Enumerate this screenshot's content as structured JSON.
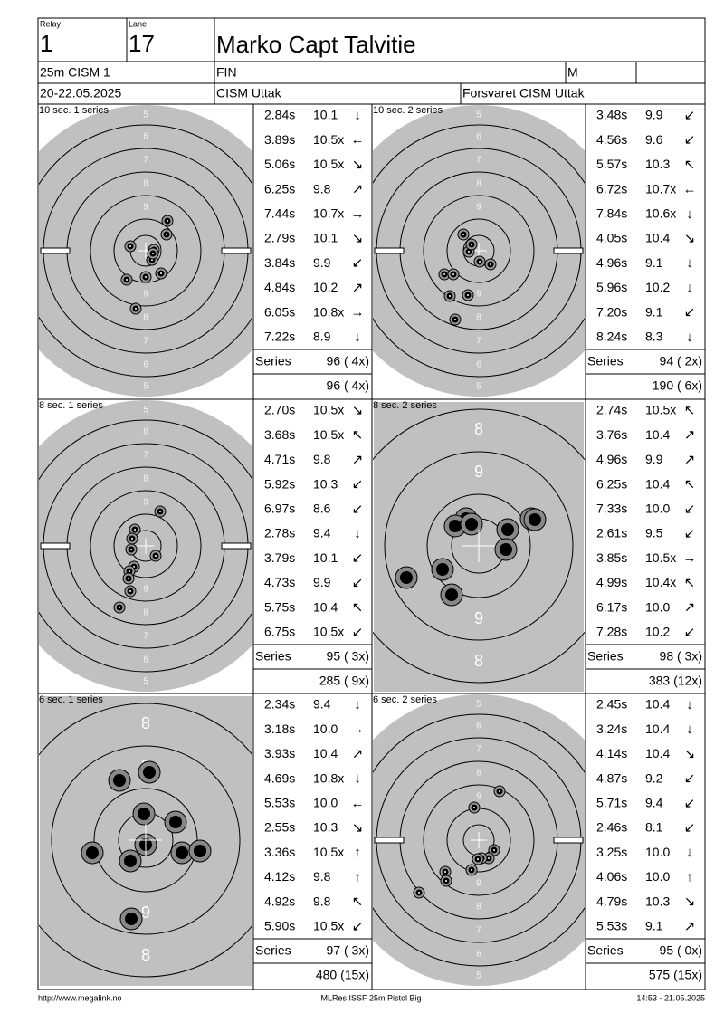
{
  "header": {
    "relay_label": "Relay",
    "relay": "1",
    "lane_label": "Lane",
    "lane": "17",
    "name": "Marko Capt Talvitie",
    "event": "25m CISM 1",
    "nation": "FIN",
    "gender": "M",
    "date": "20-22.05.2025",
    "competition": "CISM Uttak",
    "organizer": "Forsvaret CISM Uttak"
  },
  "panels": [
    {
      "title": "10 sec. 1 series",
      "zoom": false,
      "rings": [
        "5",
        "6",
        "7",
        "8",
        "9"
      ],
      "shots": [
        [
          "2.84s",
          "10.1",
          "↓"
        ],
        [
          "3.89s",
          "10.5x",
          "←"
        ],
        [
          "5.06s",
          "10.5x",
          "↘"
        ],
        [
          "6.25s",
          "9.8",
          "↗"
        ],
        [
          "7.44s",
          "10.7x",
          "→"
        ],
        [
          "2.79s",
          "10.1",
          "↘"
        ],
        [
          "3.84s",
          "9.9",
          "↙"
        ],
        [
          "4.84s",
          "10.2",
          "↗"
        ],
        [
          "6.05s",
          "10.8x",
          "→"
        ],
        [
          "7.22s",
          "8.9",
          "↓"
        ]
      ],
      "series_label": "Series",
      "series_total": "96 ( 4x)",
      "running_total": "96 ( 4x)"
    },
    {
      "title": "10 sec. 2 series",
      "zoom": false,
      "rings": [
        "5",
        "6",
        "7",
        "8",
        "9"
      ],
      "shots": [
        [
          "3.48s",
          "9.9",
          "↙"
        ],
        [
          "4.56s",
          "9.6",
          "↙"
        ],
        [
          "5.57s",
          "10.3",
          "↖"
        ],
        [
          "6.72s",
          "10.7x",
          "←"
        ],
        [
          "7.84s",
          "10.6x",
          "↓"
        ],
        [
          "4.05s",
          "10.4",
          "↘"
        ],
        [
          "4.96s",
          "9.1",
          "↓"
        ],
        [
          "5.96s",
          "10.2",
          "↓"
        ],
        [
          "7.20s",
          "9.1",
          "↙"
        ],
        [
          "8.24s",
          "8.3",
          "↓"
        ]
      ],
      "series_label": "Series",
      "series_total": "94 ( 2x)",
      "running_total": "190 ( 6x)"
    },
    {
      "title": "8 sec. 1 series",
      "zoom": false,
      "rings": [
        "5",
        "6",
        "7",
        "8",
        "9"
      ],
      "shots": [
        [
          "2.70s",
          "10.5x",
          "↘"
        ],
        [
          "3.68s",
          "10.5x",
          "↖"
        ],
        [
          "4.71s",
          "9.8",
          "↗"
        ],
        [
          "5.92s",
          "10.3",
          "↙"
        ],
        [
          "6.97s",
          "8.6",
          "↙"
        ],
        [
          "2.78s",
          "9.4",
          "↓"
        ],
        [
          "3.79s",
          "10.1",
          "↙"
        ],
        [
          "4.73s",
          "9.9",
          "↙"
        ],
        [
          "5.75s",
          "10.4",
          "↖"
        ],
        [
          "6.75s",
          "10.5x",
          "↙"
        ]
      ],
      "series_label": "Series",
      "series_total": "95 ( 3x)",
      "running_total": "285 ( 9x)"
    },
    {
      "title": "8 sec. 2 series",
      "zoom": true,
      "rings": [
        "8",
        "9"
      ],
      "shots": [
        [
          "2.74s",
          "10.5x",
          "↖"
        ],
        [
          "3.76s",
          "10.4",
          "↗"
        ],
        [
          "4.96s",
          "9.9",
          "↗"
        ],
        [
          "6.25s",
          "10.4",
          "↖"
        ],
        [
          "7.33s",
          "10.0",
          "↙"
        ],
        [
          "2.61s",
          "9.5",
          "↙"
        ],
        [
          "3.85s",
          "10.5x",
          "→"
        ],
        [
          "4.99s",
          "10.4x",
          "↖"
        ],
        [
          "6.17s",
          "10.0",
          "↗"
        ],
        [
          "7.28s",
          "10.2",
          "↙"
        ]
      ],
      "series_label": "Series",
      "series_total": "98 ( 3x)",
      "running_total": "383 (12x)"
    },
    {
      "title": "6 sec. 1 series",
      "zoom": true,
      "rings": [
        "8",
        "9"
      ],
      "shots": [
        [
          "2.34s",
          "9.4",
          "↓"
        ],
        [
          "3.18s",
          "10.0",
          "→"
        ],
        [
          "3.93s",
          "10.4",
          "↗"
        ],
        [
          "4.69s",
          "10.8x",
          "↓"
        ],
        [
          "5.53s",
          "10.0",
          "←"
        ],
        [
          "2.55s",
          "10.3",
          "↘"
        ],
        [
          "3.36s",
          "10.5x",
          "↑"
        ],
        [
          "4.12s",
          "9.8",
          "↑"
        ],
        [
          "4.92s",
          "9.8",
          "↖"
        ],
        [
          "5.90s",
          "10.5x",
          "↙"
        ]
      ],
      "series_label": "Series",
      "series_total": "97 ( 3x)",
      "running_total": "480 (15x)"
    },
    {
      "title": "6 sec. 2 series",
      "zoom": false,
      "rings": [
        "5",
        "6",
        "7",
        "8",
        "9"
      ],
      "shots": [
        [
          "2.45s",
          "10.4",
          "↓"
        ],
        [
          "3.24s",
          "10.4",
          "↓"
        ],
        [
          "4.14s",
          "10.4",
          "↘"
        ],
        [
          "4.87s",
          "9.2",
          "↙"
        ],
        [
          "5.71s",
          "9.4",
          "↙"
        ],
        [
          "2.46s",
          "8.1",
          "↙"
        ],
        [
          "3.25s",
          "10.0",
          "↓"
        ],
        [
          "4.06s",
          "10.0",
          "↑"
        ],
        [
          "4.79s",
          "10.3",
          "↘"
        ],
        [
          "5.53s",
          "9.1",
          "↗"
        ]
      ],
      "series_label": "Series",
      "series_total": "95 ( 0x)",
      "running_total": "575 (15x)"
    }
  ],
  "footer": {
    "url": "http://www.megalink.no",
    "software": "MLRes ISSF 25m Pistol Big",
    "timestamp": "14:53 - 21.05.2025"
  }
}
